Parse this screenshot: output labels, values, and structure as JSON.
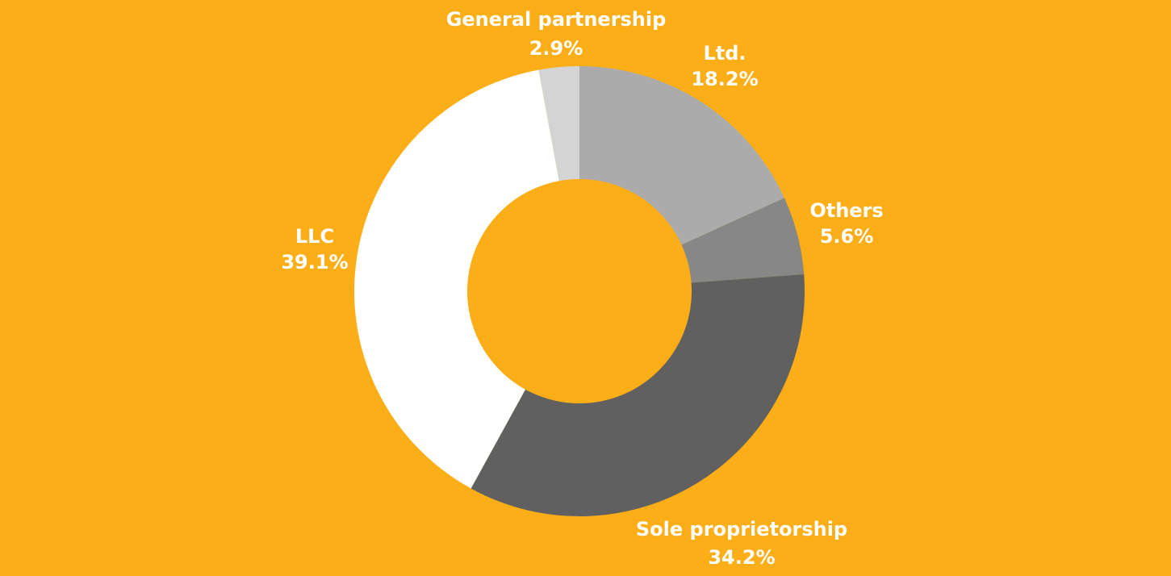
{
  "background_color": "#FBAE17",
  "chart_data": {
    "type": "pie",
    "donut": true,
    "title": "",
    "slices": [
      {
        "label": "Ltd.",
        "value": 18.2,
        "value_label": "18.2%",
        "color": "#ABABAB"
      },
      {
        "label": "Others",
        "value": 5.6,
        "value_label": "5.6%",
        "color": "#878787"
      },
      {
        "label": "Sole proprietorship",
        "value": 34.2,
        "value_label": "34.2%",
        "color": "#606060"
      },
      {
        "label": "LLC",
        "value": 39.1,
        "value_label": "39.1%",
        "color": "#FFFFFF"
      },
      {
        "label": "General partnership",
        "value": 2.9,
        "value_label": "2.9%",
        "color": "#D4D4D4"
      }
    ]
  }
}
